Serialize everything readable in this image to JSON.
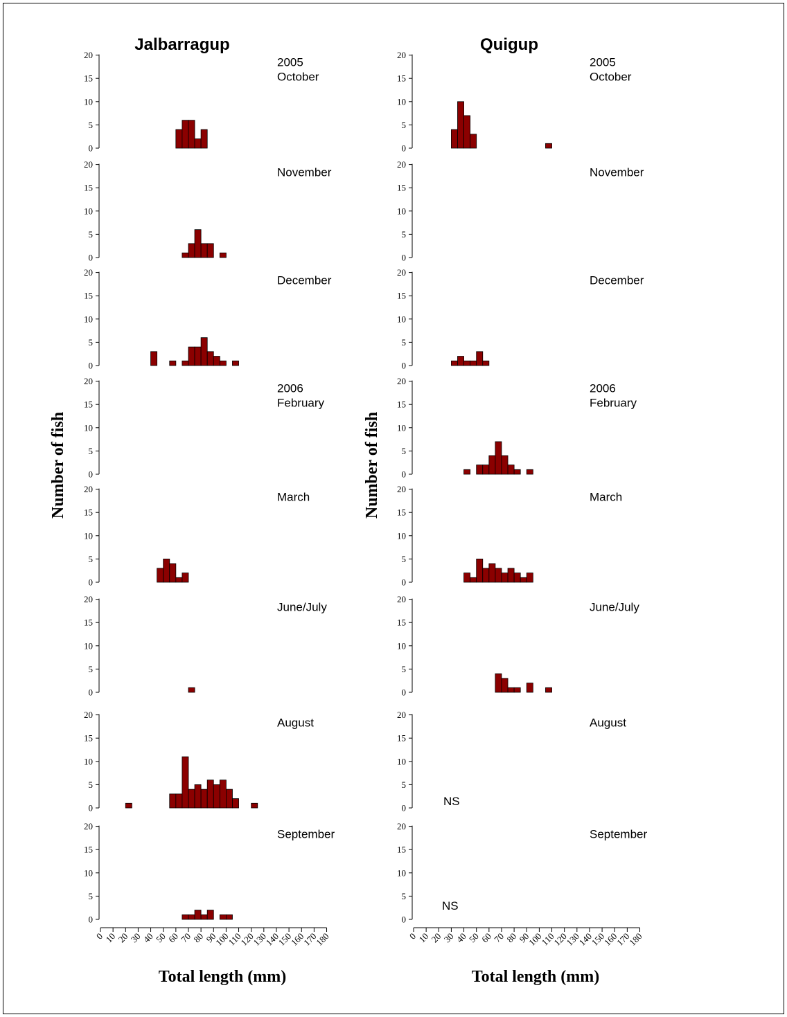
{
  "chart_data": {
    "type": "bar",
    "bin_width_mm": 5,
    "x_ticks": [
      0,
      10,
      20,
      30,
      40,
      50,
      60,
      70,
      80,
      90,
      100,
      110,
      120,
      130,
      140,
      150,
      160,
      170,
      180
    ],
    "y_ticks": [
      0,
      5,
      10,
      15,
      20
    ],
    "xlim": [
      0,
      180
    ],
    "ylim": [
      0,
      20
    ],
    "xlabel": "Total length (mm)",
    "ylabel": "Number of fish",
    "bar_color": "#8B0000",
    "sites": [
      {
        "name": "Jalbarragup",
        "panels": [
          {
            "year": "2005",
            "month": "October",
            "bins": [
              [
                60,
                4
              ],
              [
                65,
                6
              ],
              [
                70,
                6
              ],
              [
                75,
                2
              ],
              [
                80,
                4
              ]
            ]
          },
          {
            "year": "",
            "month": "November",
            "bins": [
              [
                65,
                1
              ],
              [
                70,
                3
              ],
              [
                75,
                6
              ],
              [
                80,
                3
              ],
              [
                85,
                3
              ],
              [
                95,
                1
              ]
            ]
          },
          {
            "year": "",
            "month": "December",
            "bins": [
              [
                40,
                3
              ],
              [
                55,
                1
              ],
              [
                65,
                1
              ],
              [
                70,
                4
              ],
              [
                75,
                4
              ],
              [
                80,
                6
              ],
              [
                85,
                3
              ],
              [
                90,
                2
              ],
              [
                95,
                1
              ],
              [
                105,
                1
              ]
            ]
          },
          {
            "year": "2006",
            "month": "February",
            "bins": []
          },
          {
            "year": "",
            "month": "March",
            "bins": [
              [
                45,
                3
              ],
              [
                50,
                5
              ],
              [
                55,
                4
              ],
              [
                60,
                1
              ],
              [
                65,
                2
              ]
            ]
          },
          {
            "year": "",
            "month": "June/July",
            "bins": [
              [
                70,
                1
              ]
            ]
          },
          {
            "year": "",
            "month": "August",
            "bins": [
              [
                20,
                1
              ],
              [
                55,
                3
              ],
              [
                60,
                3
              ],
              [
                65,
                11
              ],
              [
                70,
                4
              ],
              [
                75,
                5
              ],
              [
                80,
                4
              ],
              [
                85,
                6
              ],
              [
                90,
                5
              ],
              [
                95,
                6
              ],
              [
                100,
                4
              ],
              [
                105,
                2
              ],
              [
                120,
                1
              ]
            ]
          },
          {
            "year": "",
            "month": "September",
            "bins": [
              [
                65,
                1
              ],
              [
                70,
                1
              ],
              [
                75,
                2
              ],
              [
                80,
                1
              ],
              [
                85,
                2
              ],
              [
                95,
                1
              ],
              [
                100,
                1
              ]
            ]
          }
        ]
      },
      {
        "name": "Quigup",
        "panels": [
          {
            "year": "2005",
            "month": "October",
            "bins": [
              [
                30,
                4
              ],
              [
                35,
                10
              ],
              [
                40,
                7
              ],
              [
                45,
                3
              ],
              [
                105,
                1
              ]
            ]
          },
          {
            "year": "",
            "month": "November",
            "bins": []
          },
          {
            "year": "",
            "month": "December",
            "bins": [
              [
                30,
                1
              ],
              [
                35,
                2
              ],
              [
                40,
                1
              ],
              [
                45,
                1
              ],
              [
                50,
                3
              ],
              [
                55,
                1
              ]
            ]
          },
          {
            "year": "2006",
            "month": "February",
            "bins": [
              [
                40,
                1
              ],
              [
                50,
                2
              ],
              [
                55,
                2
              ],
              [
                60,
                4
              ],
              [
                65,
                7
              ],
              [
                70,
                4
              ],
              [
                75,
                2
              ],
              [
                80,
                1
              ],
              [
                90,
                1
              ]
            ]
          },
          {
            "year": "",
            "month": "March",
            "bins": [
              [
                40,
                2
              ],
              [
                45,
                1
              ],
              [
                50,
                5
              ],
              [
                55,
                3
              ],
              [
                60,
                4
              ],
              [
                65,
                3
              ],
              [
                70,
                2
              ],
              [
                75,
                3
              ],
              [
                80,
                2
              ],
              [
                85,
                1
              ],
              [
                90,
                2
              ]
            ]
          },
          {
            "year": "",
            "month": "June/July",
            "bins": [
              [
                65,
                4
              ],
              [
                70,
                3
              ],
              [
                75,
                1
              ],
              [
                80,
                1
              ],
              [
                90,
                2
              ],
              [
                105,
                1
              ]
            ]
          },
          {
            "year": "",
            "month": "August",
            "bins": [],
            "note": "NS"
          },
          {
            "year": "",
            "month": "September",
            "bins": [],
            "note": "NS"
          }
        ]
      }
    ]
  }
}
